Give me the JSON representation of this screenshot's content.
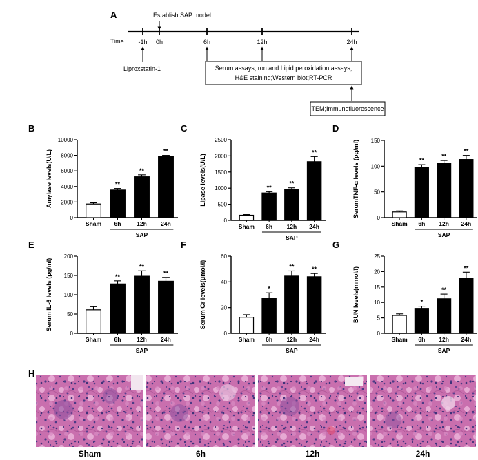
{
  "timeline": {
    "panel_label": "A",
    "time_label": "Time",
    "ticks": [
      "-1h",
      "0h",
      "6h",
      "12h",
      "24h"
    ],
    "establish_label": "Establish SAP model",
    "drug_label": "Liproxstatin-1",
    "assays_line1": "Serum assays;Iron and Lipid peroxidation assays;",
    "assays_line2": "H&E staining;Western blot;RT-PCR",
    "tem_label": "TEM;Immunofluorescence"
  },
  "group_label": "SAP",
  "chart_data": [
    {
      "panel": "B",
      "type": "bar",
      "categories": [
        "Sham",
        "6h",
        "12h",
        "24h"
      ],
      "values": [
        1750,
        3550,
        5250,
        7850
      ],
      "errors": [
        150,
        200,
        250,
        150
      ],
      "significance": [
        "",
        "**",
        "**",
        "**"
      ],
      "ylabel": "Amylase levels(U/L)",
      "ylim": [
        0,
        10000
      ],
      "yticks": [
        0,
        2000,
        4000,
        6000,
        8000,
        10000
      ],
      "group_label": "SAP"
    },
    {
      "panel": "C",
      "type": "bar",
      "categories": [
        "Sham",
        "6h",
        "12h",
        "24h"
      ],
      "values": [
        160,
        850,
        950,
        1820
      ],
      "errors": [
        20,
        40,
        60,
        160
      ],
      "significance": [
        "",
        "**",
        "**",
        "**"
      ],
      "ylabel": "Lipase levels(U/L)",
      "ylim": [
        0,
        2500
      ],
      "yticks": [
        0,
        500,
        1000,
        1500,
        2000,
        2500
      ],
      "group_label": "SAP"
    },
    {
      "panel": "D",
      "type": "bar",
      "categories": [
        "Sham",
        "6h",
        "12h",
        "24h"
      ],
      "values": [
        11,
        98,
        106,
        113
      ],
      "errors": [
        2,
        5,
        5,
        8
      ],
      "significance": [
        "",
        "**",
        "**",
        "**"
      ],
      "ylabel": "SerumTNF-α levels (pg/ml)",
      "ylim": [
        0,
        150
      ],
      "yticks": [
        0,
        50,
        100,
        150
      ],
      "group_label": "SAP"
    },
    {
      "panel": "E",
      "type": "bar",
      "categories": [
        "Sham",
        "6h",
        "12h",
        "24h"
      ],
      "values": [
        61,
        128,
        148,
        135
      ],
      "errors": [
        8,
        8,
        14,
        10
      ],
      "significance": [
        "",
        "**",
        "**",
        "**"
      ],
      "ylabel": "Serum IL-6 levels (pg/ml)",
      "ylim": [
        0,
        200
      ],
      "yticks": [
        0,
        50,
        100,
        150,
        200
      ],
      "group_label": "SAP"
    },
    {
      "panel": "F",
      "type": "bar",
      "categories": [
        "Sham",
        "6h",
        "12h",
        "24h"
      ],
      "values": [
        12.5,
        27,
        44.5,
        44
      ],
      "errors": [
        2,
        4.5,
        4,
        2.5
      ],
      "significance": [
        "",
        "*",
        "**",
        "**"
      ],
      "ylabel": "Serum Cr levels(μmol/l)",
      "ylim": [
        0,
        60
      ],
      "yticks": [
        0,
        20,
        40,
        60
      ],
      "group_label": "SAP"
    },
    {
      "panel": "G",
      "type": "bar",
      "categories": [
        "Sham",
        "6h",
        "12h",
        "24h"
      ],
      "values": [
        5.8,
        8.1,
        11.2,
        17.8
      ],
      "errors": [
        0.5,
        0.7,
        1.5,
        2
      ],
      "significance": [
        "",
        "*",
        "**",
        "**"
      ],
      "ylabel": "BUN levels(mmol/l)",
      "ylim": [
        0,
        25
      ],
      "yticks": [
        0,
        5,
        10,
        15,
        20,
        25
      ],
      "group_label": "SAP"
    }
  ],
  "histology": {
    "panel_label": "H",
    "labels": [
      "Sham",
      "6h",
      "12h",
      "24h"
    ],
    "colors": {
      "tissue": "#c96fae",
      "nuclei": "#4b3a86",
      "stroma": "#e6a9d3"
    }
  }
}
